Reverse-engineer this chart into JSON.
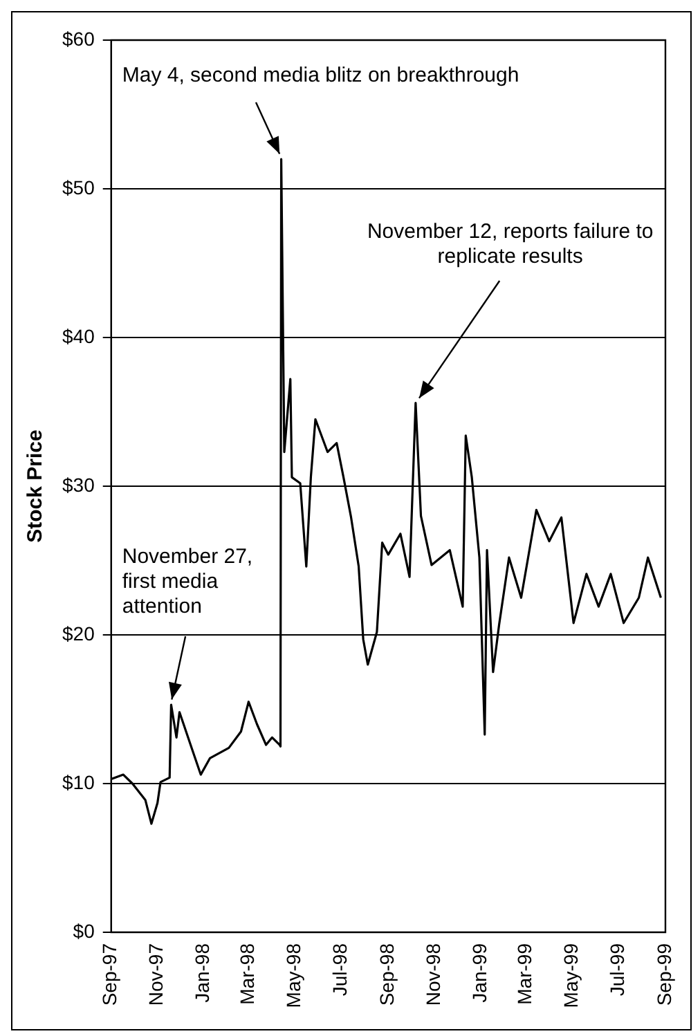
{
  "chart_data": {
    "type": "line",
    "ylabel": "Stock Price",
    "xlim": [
      "1997-09-01",
      "1999-09-01"
    ],
    "xticks": [
      {
        "value": "1997-09-01",
        "label": "Sep-97"
      },
      {
        "value": "1997-11-01",
        "label": "Nov-97"
      },
      {
        "value": "1998-01-01",
        "label": "Jan-98"
      },
      {
        "value": "1998-03-01",
        "label": "Mar-98"
      },
      {
        "value": "1998-05-01",
        "label": "May-98"
      },
      {
        "value": "1998-07-01",
        "label": "Jul-98"
      },
      {
        "value": "1998-09-01",
        "label": "Sep-98"
      },
      {
        "value": "1998-11-01",
        "label": "Nov-98"
      },
      {
        "value": "1999-01-01",
        "label": "Jan-99"
      },
      {
        "value": "1999-03-01",
        "label": "Mar-99"
      },
      {
        "value": "1999-05-01",
        "label": "May-99"
      },
      {
        "value": "1999-07-01",
        "label": "Jul-99"
      },
      {
        "value": "1999-09-01",
        "label": "Sep-99"
      }
    ],
    "ylim": [
      0,
      60
    ],
    "yticks": [
      {
        "value": 0,
        "label": "$0"
      },
      {
        "value": 10,
        "label": "$10"
      },
      {
        "value": 20,
        "label": "$20"
      },
      {
        "value": 30,
        "label": "$30"
      },
      {
        "value": 40,
        "label": "$40"
      },
      {
        "value": 50,
        "label": "$50"
      },
      {
        "value": 60,
        "label": "$60"
      }
    ],
    "grid": "y",
    "legend": false,
    "marker": "none",
    "line_style": "solid",
    "x": [
      "1997-09-01",
      "1997-09-17",
      "1997-09-29",
      "1997-10-16",
      "1997-10-24",
      "1997-11-01",
      "1997-11-05",
      "1997-11-17",
      "1997-11-19",
      "1997-11-26",
      "1997-11-30",
      "1997-12-16",
      "1997-12-28",
      "1998-01-09",
      "1998-02-03",
      "1998-02-19",
      "1998-03-01",
      "1998-03-12",
      "1998-03-24",
      "1998-04-01",
      "1998-04-11",
      "1998-04-12",
      "1998-04-13",
      "1998-04-17",
      "1998-04-25",
      "1998-04-27",
      "1998-05-08",
      "1998-05-16",
      "1998-05-22",
      "1998-05-28",
      "1998-06-13",
      "1998-06-25",
      "1998-07-04",
      "1998-07-14",
      "1998-07-24",
      "1998-07-30",
      "1998-08-05",
      "1998-08-17",
      "1998-08-24",
      "1998-09-01",
      "1998-09-17",
      "1998-09-29",
      "1998-10-07",
      "1998-10-14",
      "1998-10-28",
      "1998-11-21",
      "1998-12-08",
      "1998-12-12",
      "1998-12-20",
      "1998-12-30",
      "1999-01-06",
      "1999-01-09",
      "1999-01-17",
      "1999-01-25",
      "1999-02-07",
      "1999-02-23",
      "1999-03-15",
      "1999-04-01",
      "1999-04-17",
      "1999-05-03",
      "1999-05-20",
      "1999-06-05",
      "1999-06-21",
      "1999-07-08",
      "1999-07-28",
      "1999-08-09",
      "1999-08-26"
    ],
    "series": [
      {
        "color": "#000000",
        "values": [
          10.3,
          10.6,
          10,
          8.9,
          7.3,
          8.7,
          10.1,
          10.4,
          15.3,
          13.1,
          14.8,
          12.4,
          10.6,
          11.7,
          12.4,
          13.5,
          15.5,
          14,
          12.6,
          13.1,
          12.6,
          12.5,
          52,
          32.3,
          37.2,
          30.6,
          30.2,
          24.6,
          30.6,
          34.5,
          32.3,
          32.9,
          30.6,
          27.9,
          24.6,
          19.7,
          18,
          20.2,
          26.2,
          25.4,
          26.8,
          23.9,
          35.6,
          28,
          24.7,
          25.7,
          21.9,
          33.4,
          30.6,
          25.2,
          13.3,
          25.7,
          17.5,
          20.7,
          25.2,
          22.5,
          28.4,
          26.3,
          27.9,
          20.8,
          24.1,
          21.9,
          24.1,
          20.8,
          22.5,
          25.2,
          22.5
        ]
      }
    ],
    "annotations": [
      {
        "text": "May 4, second media blitz on breakthrough",
        "x": "1998-04-13",
        "y": 52
      },
      {
        "text": "November 12, reports failure to replicate results",
        "x": "1998-10-07",
        "y": 35.6
      },
      {
        "text": "November 27, first media attention",
        "x": "1997-11-19",
        "y": 15.3
      }
    ]
  }
}
